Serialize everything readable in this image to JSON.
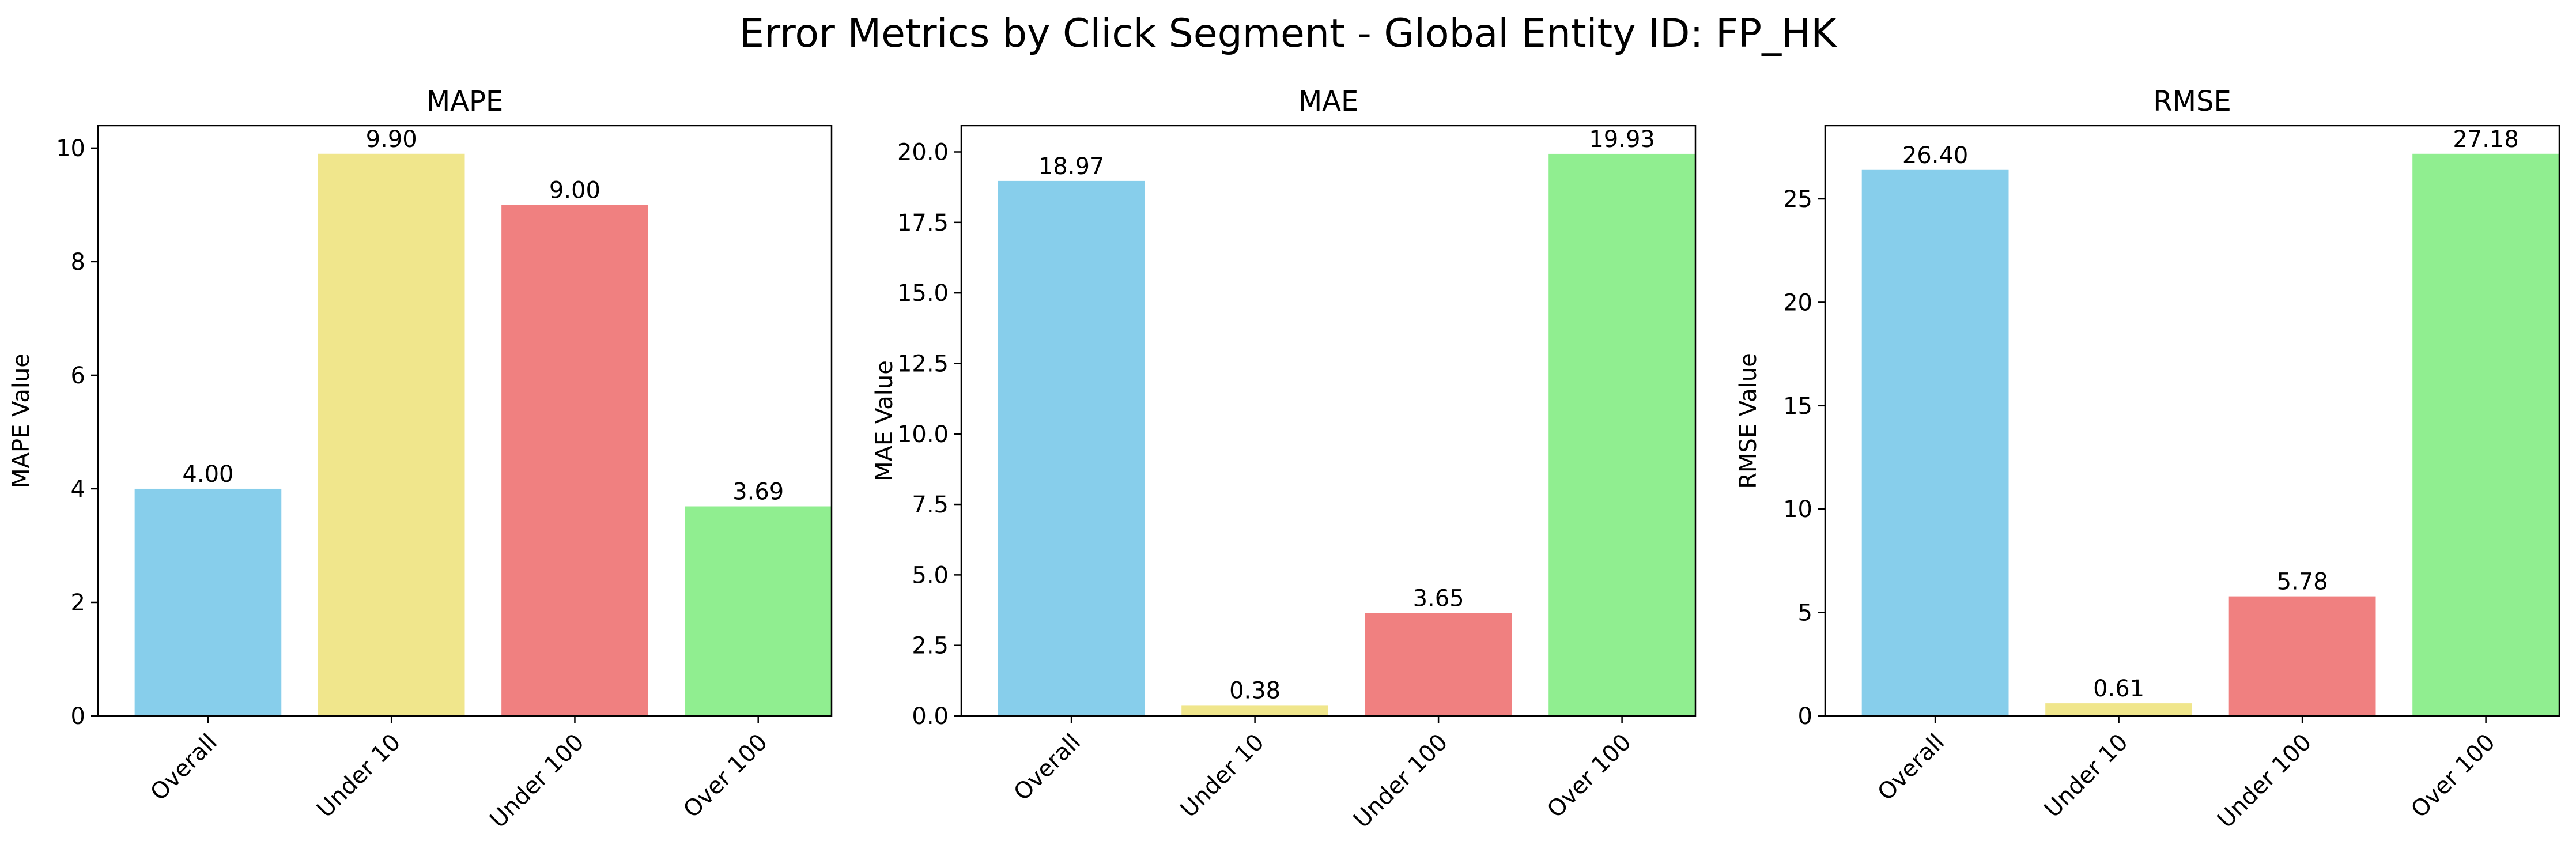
{
  "suptitle": "Error Metrics by Click Segment - Global Entity ID: FP_HK",
  "chart_data": [
    {
      "type": "bar",
      "title": "MAPE",
      "xlabel": "",
      "ylabel": "MAPE Value",
      "categories": [
        "Overall",
        "Under 10",
        "Under 100",
        "Over 100"
      ],
      "values": [
        4.0,
        9.9,
        9.0,
        3.69
      ],
      "value_labels": [
        "4.00",
        "9.90",
        "9.00",
        "3.69"
      ],
      "colors": [
        "#87ceeb",
        "#f0e68c",
        "#f08080",
        "#90ee90"
      ],
      "ylim": [
        0,
        10.395
      ],
      "yticks": [
        0,
        2,
        4,
        6,
        8,
        10
      ],
      "ytick_labels": [
        "0",
        "2",
        "4",
        "6",
        "8",
        "10"
      ],
      "grid": false
    },
    {
      "type": "bar",
      "title": "MAE",
      "xlabel": "",
      "ylabel": "MAE Value",
      "categories": [
        "Overall",
        "Under 10",
        "Under 100",
        "Over 100"
      ],
      "values": [
        18.97,
        0.38,
        3.65,
        19.93
      ],
      "value_labels": [
        "18.97",
        "0.38",
        "3.65",
        "19.93"
      ],
      "colors": [
        "#87ceeb",
        "#f0e68c",
        "#f08080",
        "#90ee90"
      ],
      "ylim": [
        0,
        20.93
      ],
      "yticks": [
        0,
        2.5,
        5,
        7.5,
        10,
        12.5,
        15,
        17.5,
        20
      ],
      "ytick_labels": [
        "0.0",
        "2.5",
        "5.0",
        "7.5",
        "10.0",
        "12.5",
        "15.0",
        "17.5",
        "20.0"
      ],
      "grid": false
    },
    {
      "type": "bar",
      "title": "RMSE",
      "xlabel": "",
      "ylabel": "RMSE Value",
      "categories": [
        "Overall",
        "Under 10",
        "Under 100",
        "Over 100"
      ],
      "values": [
        26.4,
        0.61,
        5.78,
        27.18
      ],
      "value_labels": [
        "26.40",
        "0.61",
        "5.78",
        "27.18"
      ],
      "colors": [
        "#87ceeb",
        "#f0e68c",
        "#f08080",
        "#90ee90"
      ],
      "ylim": [
        0,
        28.54
      ],
      "yticks": [
        0,
        5,
        10,
        15,
        20,
        25
      ],
      "ytick_labels": [
        "0",
        "5",
        "10",
        "15",
        "20",
        "25"
      ],
      "grid": false
    }
  ]
}
